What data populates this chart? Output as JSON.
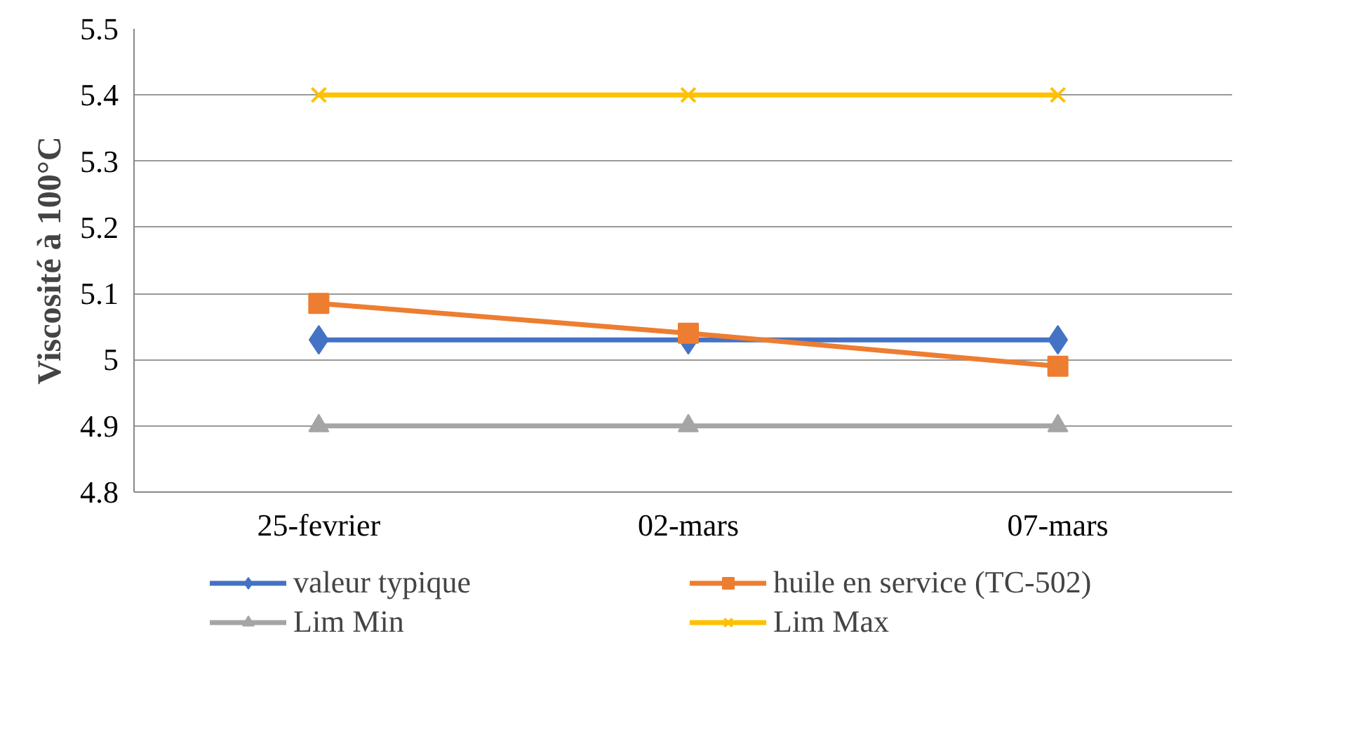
{
  "chart_data": {
    "type": "line",
    "ylabel": "Viscosité à 100°C",
    "categories": [
      "25-fevrier",
      "02-mars",
      "07-mars"
    ],
    "ylim": [
      4.8,
      5.5
    ],
    "yticks": [
      4.8,
      4.9,
      {
        "value": 5.0,
        "label": "5"
      },
      5.1,
      5.2,
      5.3,
      5.4,
      5.5
    ],
    "grid": "y",
    "legend": "bottom",
    "series": [
      {
        "name": "valeur typique",
        "color": "#4472c4",
        "marker": "diamond",
        "values": [
          5.03,
          5.03,
          5.03
        ]
      },
      {
        "name": "huile en service (TC-502)",
        "color": "#ed7d31",
        "marker": "square",
        "values": [
          5.085,
          5.04,
          4.99
        ]
      },
      {
        "name": "Lim Min",
        "color": "#a5a5a5",
        "marker": "triangle",
        "values": [
          4.9,
          4.9,
          4.9
        ]
      },
      {
        "name": "Lim Max",
        "color": "#ffc000",
        "marker": "cross",
        "values": [
          5.4,
          5.4,
          5.4
        ]
      }
    ]
  }
}
